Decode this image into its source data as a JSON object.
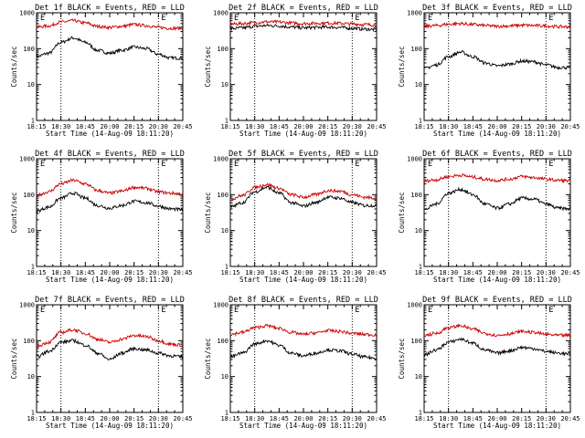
{
  "chart_data": [
    {
      "type": "line",
      "title": "Det 1f BLACK = Events, RED = LLD",
      "xlabel": "Start Time (14-Aug-09 18:11:20)",
      "ylabel": "Counts/sec",
      "flag_label": "E",
      "ylim": [
        1,
        1000
      ],
      "yscale": "log",
      "yticks": [
        "1",
        "10",
        "100",
        "1000"
      ],
      "xticks": [
        "18:15",
        "18:30",
        "18:45",
        "20:00",
        "20:15",
        "20:30",
        "20:45"
      ],
      "marker_ticks": [
        "18:30",
        "20:30"
      ],
      "series": [
        {
          "color": "#000000",
          "x": [
            0,
            0.5,
            1,
            1.5,
            2,
            2.5,
            3,
            3.5,
            4,
            4.5,
            5,
            5.5,
            6
          ],
          "y": [
            60,
            75,
            150,
            200,
            150,
            90,
            75,
            90,
            110,
            100,
            70,
            55,
            55
          ]
        },
        {
          "color": "#cc0000",
          "x": [
            0,
            0.5,
            1,
            1.5,
            2,
            2.5,
            3,
            3.5,
            4,
            4.5,
            5,
            5.5,
            6
          ],
          "y": [
            400,
            430,
            550,
            600,
            520,
            420,
            390,
            420,
            470,
            440,
            390,
            370,
            370
          ]
        }
      ]
    },
    {
      "type": "line",
      "title": "Det 2f BLACK = Events, RED = LLD",
      "xlabel": "Start Time (14-Aug-09 18:11:20)",
      "ylabel": "Counts/sec",
      "flag_label": "E",
      "ylim": [
        1,
        1000
      ],
      "yscale": "log",
      "yticks": [
        "1",
        "10",
        "100",
        "1000"
      ],
      "xticks": [
        "18:15",
        "18:30",
        "18:45",
        "20:00",
        "20:15",
        "20:30",
        "20:45"
      ],
      "marker_ticks": [
        "18:30",
        "20:30"
      ],
      "series": [
        {
          "color": "#000000",
          "x": [
            0,
            0.5,
            1,
            1.5,
            2,
            2.5,
            3,
            3.5,
            4,
            4.5,
            5,
            5.5,
            6
          ],
          "y": [
            360,
            380,
            420,
            440,
            430,
            400,
            380,
            390,
            400,
            390,
            370,
            350,
            340
          ]
        },
        {
          "color": "#cc0000",
          "x": [
            0,
            0.5,
            1,
            1.5,
            2,
            2.5,
            3,
            3.5,
            4,
            4.5,
            5,
            5.5,
            6
          ],
          "y": [
            480,
            500,
            530,
            560,
            550,
            520,
            500,
            510,
            520,
            510,
            490,
            470,
            460
          ]
        }
      ]
    },
    {
      "type": "line",
      "title": "Det 3f BLACK = Events, RED = LLD",
      "xlabel": "Start Time (14-Aug-09 18:11:20)",
      "ylabel": "Counts/sec",
      "flag_label": "E",
      "ylim": [
        1,
        1000
      ],
      "yscale": "log",
      "yticks": [
        "1",
        "10",
        "100",
        "1000"
      ],
      "xticks": [
        "18:15",
        "18:30",
        "18:45",
        "20:00",
        "20:15",
        "20:30",
        "20:45"
      ],
      "marker_ticks": [
        "18:30",
        "20:30"
      ],
      "series": [
        {
          "color": "#000000",
          "x": [
            0,
            0.5,
            1,
            1.5,
            2,
            2.5,
            3,
            3.5,
            4,
            4.5,
            5,
            5.5,
            6
          ],
          "y": [
            28,
            35,
            60,
            80,
            60,
            40,
            33,
            37,
            45,
            43,
            35,
            30,
            30
          ]
        },
        {
          "color": "#cc0000",
          "x": [
            0,
            0.5,
            1,
            1.5,
            2,
            2.5,
            3,
            3.5,
            4,
            4.5,
            5,
            5.5,
            6
          ],
          "y": [
            420,
            440,
            480,
            500,
            470,
            440,
            420,
            430,
            450,
            440,
            430,
            410,
            410
          ]
        }
      ]
    },
    {
      "type": "line",
      "title": "Det 4f BLACK = Events, RED = LLD",
      "xlabel": "Start Time (14-Aug-09 18:11:20)",
      "ylabel": "Counts/sec",
      "flag_label": "E",
      "ylim": [
        1,
        1000
      ],
      "yscale": "log",
      "yticks": [
        "1",
        "10",
        "100",
        "1000"
      ],
      "xticks": [
        "18:15",
        "18:30",
        "18:45",
        "20:00",
        "20:15",
        "20:30",
        "20:45"
      ],
      "marker_ticks": [
        "18:30",
        "20:30"
      ],
      "series": [
        {
          "color": "#000000",
          "x": [
            0,
            0.5,
            1,
            1.5,
            2,
            2.5,
            3,
            3.5,
            4,
            4.5,
            5,
            5.5,
            6
          ],
          "y": [
            35,
            45,
            80,
            110,
            80,
            50,
            42,
            50,
            65,
            60,
            48,
            40,
            38
          ]
        },
        {
          "color": "#cc0000",
          "x": [
            0,
            0.5,
            1,
            1.5,
            2,
            2.5,
            3,
            3.5,
            4,
            4.5,
            5,
            5.5,
            6
          ],
          "y": [
            95,
            120,
            200,
            250,
            200,
            130,
            110,
            125,
            160,
            150,
            120,
            110,
            105
          ]
        }
      ]
    },
    {
      "type": "line",
      "title": "Det 5f BLACK = Events, RED = LLD",
      "xlabel": "Start Time (14-Aug-09 18:11:20)",
      "ylabel": "Counts/sec",
      "flag_label": "E",
      "ylim": [
        1,
        1000
      ],
      "yscale": "log",
      "yticks": [
        "1",
        "10",
        "100",
        "1000"
      ],
      "xticks": [
        "18:15",
        "18:30",
        "18:45",
        "20:00",
        "20:15",
        "20:30",
        "20:45"
      ],
      "marker_ticks": [
        "18:30",
        "20:30"
      ],
      "series": [
        {
          "color": "#000000",
          "x": [
            0,
            0.5,
            1,
            1.5,
            2,
            2.5,
            3,
            3.5,
            4,
            4.5,
            5,
            5.5,
            6
          ],
          "y": [
            45,
            60,
            120,
            160,
            110,
            60,
            48,
            60,
            85,
            80,
            60,
            50,
            50
          ]
        },
        {
          "color": "#cc0000",
          "x": [
            0,
            0.5,
            1,
            1.5,
            2,
            2.5,
            3,
            3.5,
            4,
            4.5,
            5,
            5.5,
            6
          ],
          "y": [
            75,
            95,
            160,
            190,
            150,
            100,
            85,
            100,
            130,
            125,
            100,
            85,
            80
          ]
        }
      ]
    },
    {
      "type": "line",
      "title": "Det 6f BLACK = Events, RED = LLD",
      "xlabel": "Start Time (14-Aug-09 18:11:20)",
      "ylabel": "Counts/sec",
      "flag_label": "E",
      "ylim": [
        1,
        1000
      ],
      "yscale": "log",
      "yticks": [
        "1",
        "10",
        "100",
        "1000"
      ],
      "xticks": [
        "18:15",
        "18:30",
        "18:45",
        "20:00",
        "20:15",
        "20:30",
        "20:45"
      ],
      "marker_ticks": [
        "18:30",
        "20:30"
      ],
      "series": [
        {
          "color": "#000000",
          "x": [
            0,
            0.5,
            1,
            1.5,
            2,
            2.5,
            3,
            3.5,
            4,
            4.5,
            5,
            5.5,
            6
          ],
          "y": [
            38,
            55,
            110,
            140,
            100,
            55,
            42,
            55,
            80,
            75,
            55,
            42,
            40
          ]
        },
        {
          "color": "#cc0000",
          "x": [
            0,
            0.5,
            1,
            1.5,
            2,
            2.5,
            3,
            3.5,
            4,
            4.5,
            5,
            5.5,
            6
          ],
          "y": [
            240,
            260,
            320,
            350,
            310,
            270,
            250,
            270,
            320,
            300,
            270,
            250,
            245
          ]
        }
      ]
    },
    {
      "type": "line",
      "title": "Det 7f BLACK = Events, RED = LLD",
      "xlabel": "Start Time (14-Aug-09 18:11:20)",
      "ylabel": "Counts/sec",
      "flag_label": "E",
      "ylim": [
        1,
        1000
      ],
      "yscale": "log",
      "yticks": [
        "1",
        "10",
        "100",
        "1000"
      ],
      "xticks": [
        "18:15",
        "18:30",
        "18:45",
        "20:00",
        "20:15",
        "20:30",
        "20:45"
      ],
      "marker_ticks": [
        "18:30",
        "20:30"
      ],
      "series": [
        {
          "color": "#000000",
          "x": [
            0,
            0.5,
            1,
            1.5,
            2,
            2.5,
            3,
            3.5,
            4,
            4.5,
            5,
            5.5,
            6
          ],
          "y": [
            35,
            50,
            90,
            100,
            75,
            45,
            30,
            45,
            60,
            55,
            45,
            38,
            35
          ]
        },
        {
          "color": "#cc0000",
          "x": [
            0,
            0.5,
            1,
            1.5,
            2,
            2.5,
            3,
            3.5,
            4,
            4.5,
            5,
            5.5,
            6
          ],
          "y": [
            70,
            90,
            170,
            200,
            160,
            110,
            90,
            110,
            140,
            130,
            100,
            80,
            75
          ]
        }
      ]
    },
    {
      "type": "line",
      "title": "Det 8f BLACK = Events, RED = LLD",
      "xlabel": "Start Time (14-Aug-09 18:11:20)",
      "ylabel": "Counts/sec",
      "flag_label": "E",
      "ylim": [
        1,
        1000
      ],
      "yscale": "log",
      "yticks": [
        "1",
        "10",
        "100",
        "1000"
      ],
      "xticks": [
        "18:15",
        "18:30",
        "18:45",
        "20:00",
        "20:15",
        "20:30",
        "20:45"
      ],
      "marker_ticks": [
        "18:30",
        "20:30"
      ],
      "series": [
        {
          "color": "#000000",
          "x": [
            0,
            0.5,
            1,
            1.5,
            2,
            2.5,
            3,
            3.5,
            4,
            4.5,
            5,
            5.5,
            6
          ],
          "y": [
            35,
            45,
            80,
            100,
            75,
            45,
            38,
            45,
            55,
            52,
            42,
            35,
            32
          ]
        },
        {
          "color": "#cc0000",
          "x": [
            0,
            0.5,
            1,
            1.5,
            2,
            2.5,
            3,
            3.5,
            4,
            4.5,
            5,
            5.5,
            6
          ],
          "y": [
            150,
            170,
            230,
            260,
            220,
            170,
            150,
            165,
            190,
            180,
            160,
            150,
            145
          ]
        }
      ]
    },
    {
      "type": "line",
      "title": "Det 9f BLACK = Events, RED = LLD",
      "xlabel": "Start Time (14-Aug-09 18:11:20)",
      "ylabel": "Counts/sec",
      "flag_label": "E",
      "ylim": [
        1,
        1000
      ],
      "yscale": "log",
      "yticks": [
        "1",
        "10",
        "100",
        "1000"
      ],
      "xticks": [
        "18:15",
        "18:30",
        "18:45",
        "20:00",
        "20:15",
        "20:30",
        "20:45"
      ],
      "marker_ticks": [
        "18:30",
        "20:30"
      ],
      "series": [
        {
          "color": "#000000",
          "x": [
            0,
            0.5,
            1,
            1.5,
            2,
            2.5,
            3,
            3.5,
            4,
            4.5,
            5,
            5.5,
            6
          ],
          "y": [
            40,
            55,
            90,
            110,
            85,
            55,
            45,
            52,
            65,
            60,
            50,
            45,
            42
          ]
        },
        {
          "color": "#cc0000",
          "x": [
            0,
            0.5,
            1,
            1.5,
            2,
            2.5,
            3,
            3.5,
            4,
            4.5,
            5,
            5.5,
            6
          ],
          "y": [
            140,
            160,
            230,
            260,
            210,
            160,
            140,
            155,
            180,
            170,
            150,
            140,
            140
          ]
        }
      ]
    }
  ]
}
